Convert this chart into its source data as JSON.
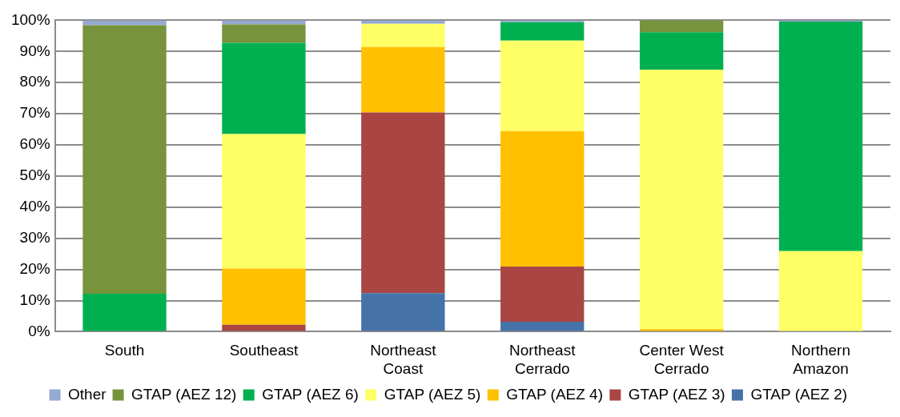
{
  "chart_data": {
    "type": "bar",
    "stacked": true,
    "categories": [
      "South",
      "Southeast",
      "Northeast Coast",
      "Northeast Cerrado",
      "Center West Cerrado",
      "Northern Amazon"
    ],
    "ylim": [
      0,
      100
    ],
    "yticks": [
      {
        "value": 0,
        "label": "0%"
      },
      {
        "value": 10,
        "label": "10%"
      },
      {
        "value": 20,
        "label": "20%"
      },
      {
        "value": 30,
        "label": "30%"
      },
      {
        "value": 40,
        "label": "40%"
      },
      {
        "value": 50,
        "label": "50%"
      },
      {
        "value": 60,
        "label": "60%"
      },
      {
        "value": 70,
        "label": "70%"
      },
      {
        "value": 80,
        "label": "80%"
      },
      {
        "value": 90,
        "label": "90%"
      },
      {
        "value": 100,
        "label": "100%"
      }
    ],
    "grid": "y",
    "legend": "bottom",
    "series": [
      {
        "name": "GTAP (AEZ 2)",
        "color": "#4572a7",
        "values": [
          0,
          0,
          12.4,
          3.2,
          0,
          0
        ]
      },
      {
        "name": "GTAP (AEZ 3)",
        "color": "#a94643",
        "values": [
          0,
          2.2,
          58,
          17.7,
          0,
          0
        ]
      },
      {
        "name": "GTAP (AEZ 4)",
        "color": "#ffc000",
        "values": [
          0,
          18.1,
          21,
          43.5,
          0.8,
          0
        ]
      },
      {
        "name": "GTAP (AEZ 5)",
        "color": "#ffff66",
        "values": [
          0,
          43.2,
          7.5,
          29.1,
          83.3,
          25.9
        ]
      },
      {
        "name": "GTAP (AEZ 6)",
        "color": "#00b050",
        "values": [
          12.2,
          29.3,
          0,
          5.9,
          12.1,
          73.7
        ]
      },
      {
        "name": "GTAP (AEZ 12)",
        "color": "#77933c",
        "values": [
          86.2,
          5.9,
          0,
          0,
          3.8,
          0
        ]
      },
      {
        "name": "Other",
        "color": "#95a9d3",
        "values": [
          1.6,
          1.3,
          1.1,
          0.6,
          0,
          0.4
        ]
      }
    ]
  }
}
